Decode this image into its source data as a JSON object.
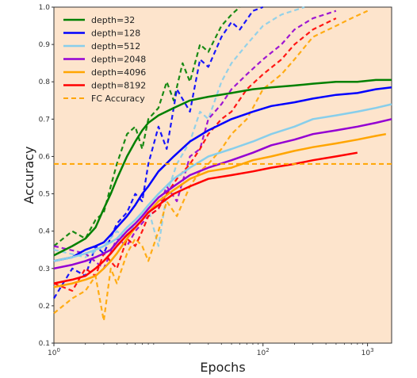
{
  "chart_data": {
    "type": "line",
    "xlabel": "Epochs",
    "ylabel": "Accuracy",
    "x_scale": "log",
    "xlim": [
      1,
      1700
    ],
    "ylim": [
      0.1,
      1.0
    ],
    "y_ticks": [
      "0.1",
      "0.2",
      "0.3",
      "0.4",
      "0.5",
      "0.6",
      "0.7",
      "0.8",
      "0.9",
      "1.0"
    ],
    "x_ticks": [
      {
        "value": 1,
        "base": "10",
        "exp": "0"
      },
      {
        "value": 100,
        "base": "10",
        "exp": "2"
      },
      {
        "value": 1000,
        "base": "10",
        "exp": "3"
      }
    ],
    "grid": false,
    "legend_position": "upper-left",
    "background_color": "#fde4cc",
    "series": [
      {
        "name": "depth=32",
        "color": "#008000",
        "style": "solid",
        "width": 2.5,
        "x": [
          1,
          1.5,
          2,
          2.5,
          3,
          3.5,
          4,
          5,
          6,
          7,
          8,
          10,
          14,
          20,
          30,
          50,
          80,
          120,
          200,
          300,
          500,
          800,
          1200,
          1700
        ],
        "y": [
          0.335,
          0.36,
          0.38,
          0.41,
          0.46,
          0.5,
          0.54,
          0.6,
          0.64,
          0.67,
          0.69,
          0.71,
          0.73,
          0.75,
          0.76,
          0.77,
          0.78,
          0.785,
          0.79,
          0.795,
          0.8,
          0.8,
          0.805,
          0.805
        ]
      },
      {
        "name": "depth=128",
        "color": "#0000ff",
        "style": "solid",
        "width": 2.5,
        "x": [
          1,
          1.5,
          2,
          2.5,
          3,
          3.5,
          4,
          5,
          6,
          7,
          8,
          10,
          14,
          20,
          30,
          50,
          80,
          120,
          200,
          300,
          500,
          800,
          1200,
          1700
        ],
        "y": [
          0.32,
          0.33,
          0.35,
          0.36,
          0.37,
          0.39,
          0.41,
          0.44,
          0.47,
          0.5,
          0.52,
          0.56,
          0.6,
          0.64,
          0.67,
          0.7,
          0.72,
          0.735,
          0.745,
          0.755,
          0.765,
          0.77,
          0.78,
          0.785
        ]
      },
      {
        "name": "depth=512",
        "color": "#87ceeb",
        "style": "solid",
        "width": 2.5,
        "x": [
          1,
          1.5,
          2,
          2.5,
          3,
          3.5,
          4,
          5,
          6,
          7,
          8,
          10,
          14,
          20,
          30,
          50,
          80,
          120,
          200,
          300,
          500,
          800,
          1200,
          1700
        ],
        "y": [
          0.32,
          0.33,
          0.34,
          0.35,
          0.36,
          0.37,
          0.38,
          0.41,
          0.43,
          0.45,
          0.47,
          0.5,
          0.54,
          0.57,
          0.6,
          0.62,
          0.64,
          0.66,
          0.68,
          0.7,
          0.71,
          0.72,
          0.73,
          0.74
        ]
      },
      {
        "name": "depth=2048",
        "color": "#9400d3",
        "style": "solid",
        "width": 2.5,
        "x": [
          1,
          1.5,
          2,
          2.5,
          3,
          3.5,
          4,
          5,
          6,
          7,
          8,
          10,
          14,
          20,
          30,
          50,
          80,
          120,
          200,
          300,
          500,
          800,
          1200,
          1700
        ],
        "y": [
          0.3,
          0.31,
          0.32,
          0.33,
          0.34,
          0.35,
          0.37,
          0.4,
          0.42,
          0.44,
          0.46,
          0.49,
          0.52,
          0.55,
          0.57,
          0.59,
          0.61,
          0.63,
          0.645,
          0.66,
          0.67,
          0.68,
          0.69,
          0.7
        ]
      },
      {
        "name": "depth=4096",
        "color": "#ffa500",
        "style": "solid",
        "width": 2.5,
        "x": [
          1,
          1.5,
          2,
          2.5,
          3,
          3.5,
          4,
          5,
          6,
          7,
          8,
          10,
          14,
          20,
          30,
          50,
          80,
          120,
          200,
          300,
          500,
          800,
          1200,
          1500
        ],
        "y": [
          0.25,
          0.26,
          0.27,
          0.28,
          0.3,
          0.32,
          0.34,
          0.38,
          0.41,
          0.43,
          0.45,
          0.48,
          0.51,
          0.54,
          0.56,
          0.57,
          0.59,
          0.6,
          0.615,
          0.625,
          0.635,
          0.645,
          0.655,
          0.66
        ]
      },
      {
        "name": "depth=8192",
        "color": "#ff0000",
        "style": "solid",
        "width": 2.5,
        "x": [
          1,
          1.5,
          2,
          2.5,
          3,
          3.5,
          4,
          5,
          6,
          7,
          8,
          10,
          14,
          20,
          30,
          50,
          80,
          120,
          200,
          300,
          500,
          800
        ],
        "y": [
          0.26,
          0.27,
          0.28,
          0.3,
          0.32,
          0.34,
          0.36,
          0.39,
          0.41,
          0.43,
          0.45,
          0.47,
          0.5,
          0.52,
          0.54,
          0.55,
          0.56,
          0.57,
          0.58,
          0.59,
          0.6,
          0.61
        ]
      },
      {
        "name": "FC Accuracy",
        "color": "#ffa500",
        "style": "dashed",
        "width": 2,
        "x": [
          1,
          1700
        ],
        "y": [
          0.58,
          0.58
        ]
      }
    ],
    "test_series": [
      {
        "color": "#008000",
        "x": [
          1,
          1.5,
          2,
          2.5,
          3,
          3.5,
          4,
          5,
          6,
          7,
          8,
          10,
          12,
          14,
          17,
          20,
          25,
          30,
          40,
          50,
          60
        ],
        "y": [
          0.36,
          0.4,
          0.38,
          0.43,
          0.45,
          0.52,
          0.58,
          0.66,
          0.68,
          0.62,
          0.7,
          0.73,
          0.8,
          0.75,
          0.85,
          0.8,
          0.9,
          0.88,
          0.95,
          0.98,
          1.0
        ]
      },
      {
        "color": "#0000ff",
        "x": [
          1,
          1.5,
          2,
          2.5,
          3,
          4,
          5,
          6,
          7,
          8,
          10,
          12,
          15,
          20,
          25,
          30,
          40,
          50,
          60,
          80,
          100
        ],
        "y": [
          0.22,
          0.3,
          0.28,
          0.36,
          0.34,
          0.42,
          0.45,
          0.5,
          0.48,
          0.58,
          0.68,
          0.62,
          0.78,
          0.72,
          0.86,
          0.84,
          0.92,
          0.96,
          0.94,
          0.99,
          1.0
        ]
      },
      {
        "color": "#87ceeb",
        "x": [
          1,
          2,
          3,
          4,
          5,
          6,
          8,
          10,
          12,
          15,
          20,
          25,
          30,
          40,
          50,
          70,
          100,
          150,
          250
        ],
        "y": [
          0.35,
          0.33,
          0.36,
          0.4,
          0.38,
          0.42,
          0.46,
          0.36,
          0.5,
          0.58,
          0.64,
          0.72,
          0.7,
          0.8,
          0.85,
          0.9,
          0.95,
          0.98,
          1.0
        ]
      },
      {
        "color": "#9400d3",
        "x": [
          1,
          2,
          3,
          4,
          5,
          6,
          8,
          10,
          12,
          15,
          20,
          25,
          30,
          40,
          50,
          70,
          100,
          150,
          200,
          300,
          500
        ],
        "y": [
          0.36,
          0.34,
          0.3,
          0.38,
          0.36,
          0.4,
          0.44,
          0.46,
          0.52,
          0.48,
          0.6,
          0.62,
          0.7,
          0.74,
          0.78,
          0.82,
          0.86,
          0.9,
          0.94,
          0.97,
          0.99
        ]
      },
      {
        "color": "#ffa500",
        "x": [
          1,
          1.5,
          2,
          2.5,
          3,
          3.5,
          4,
          5,
          6,
          7,
          8,
          10,
          12,
          15,
          20,
          25,
          30,
          40,
          50,
          70,
          100,
          150,
          200,
          300,
          500,
          700,
          1000
        ],
        "y": [
          0.18,
          0.22,
          0.24,
          0.28,
          0.16,
          0.3,
          0.26,
          0.34,
          0.38,
          0.36,
          0.32,
          0.4,
          0.48,
          0.44,
          0.52,
          0.56,
          0.58,
          0.62,
          0.66,
          0.7,
          0.78,
          0.82,
          0.86,
          0.92,
          0.95,
          0.97,
          0.99
        ]
      },
      {
        "color": "#ff0000",
        "x": [
          1,
          1.5,
          2,
          2.5,
          3,
          4,
          5,
          6,
          7,
          8,
          10,
          12,
          15,
          20,
          25,
          30,
          40,
          50,
          70,
          100,
          150,
          200,
          300,
          500
        ],
        "y": [
          0.26,
          0.24,
          0.3,
          0.28,
          0.34,
          0.3,
          0.38,
          0.36,
          0.4,
          0.44,
          0.46,
          0.5,
          0.54,
          0.58,
          0.62,
          0.66,
          0.7,
          0.72,
          0.78,
          0.82,
          0.86,
          0.9,
          0.94,
          0.97
        ]
      }
    ]
  }
}
